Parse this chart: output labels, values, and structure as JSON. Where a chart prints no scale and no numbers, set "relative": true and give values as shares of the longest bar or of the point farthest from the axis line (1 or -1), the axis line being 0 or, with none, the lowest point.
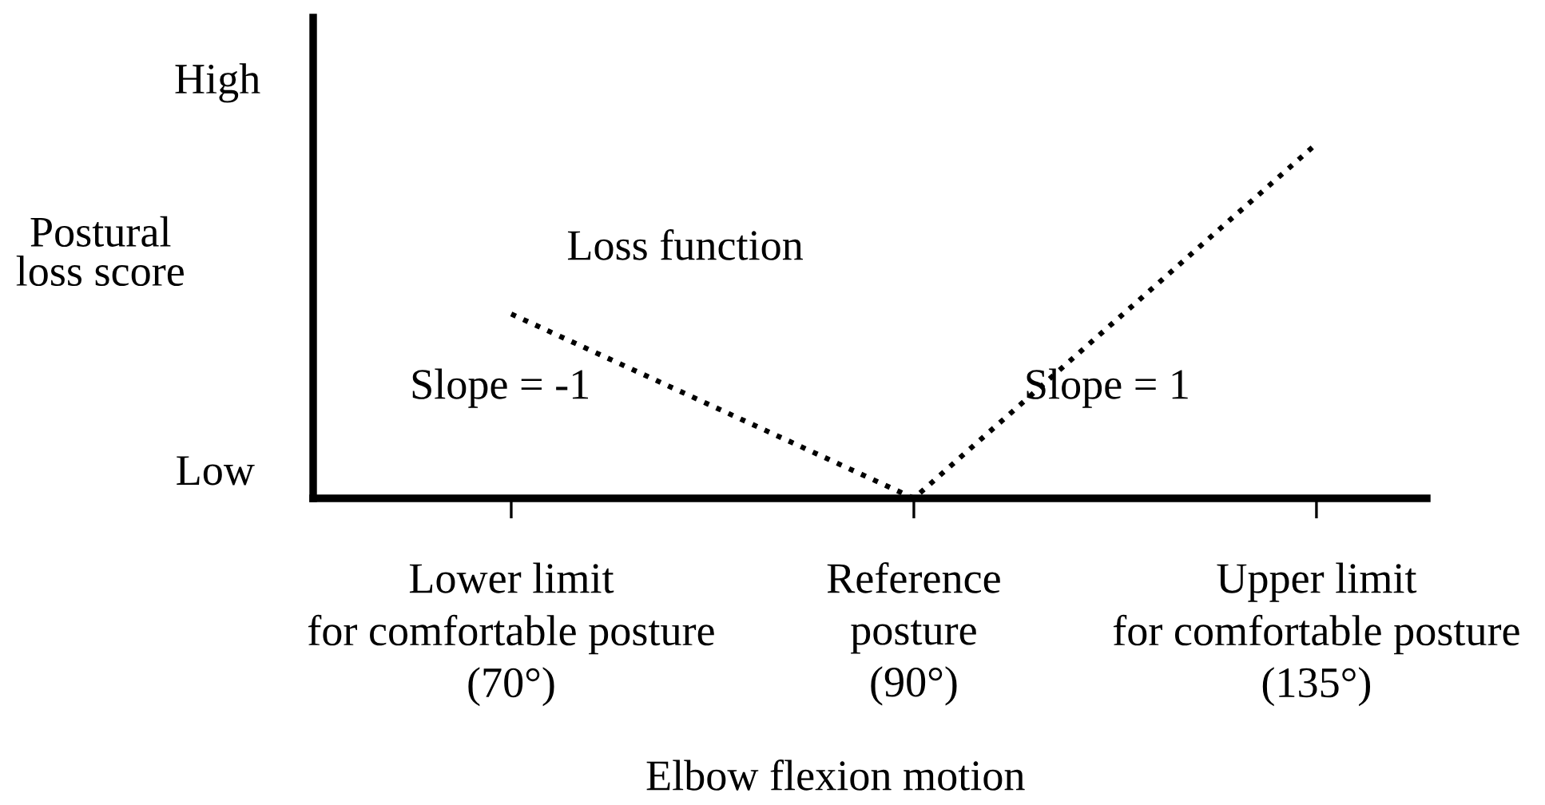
{
  "chart_data": {
    "type": "line",
    "relative": true,
    "line_style": "dotted",
    "categories": [
      "Lower limit\nfor comfortable posture\n(70°)",
      "Reference\nposture\n(90°)",
      "Upper limit\nfor comfortable posture\n(135°)"
    ],
    "series": [
      {
        "name": "Loss function",
        "color": "#000000",
        "values": [
          0.52,
          0,
          1
        ]
      }
    ],
    "xlabel": "Elbow flexion motion",
    "ylabel": "Postural\nloss score",
    "annotations": [
      "High",
      "Low",
      "Slope = -1",
      "Slope = 1"
    ]
  }
}
